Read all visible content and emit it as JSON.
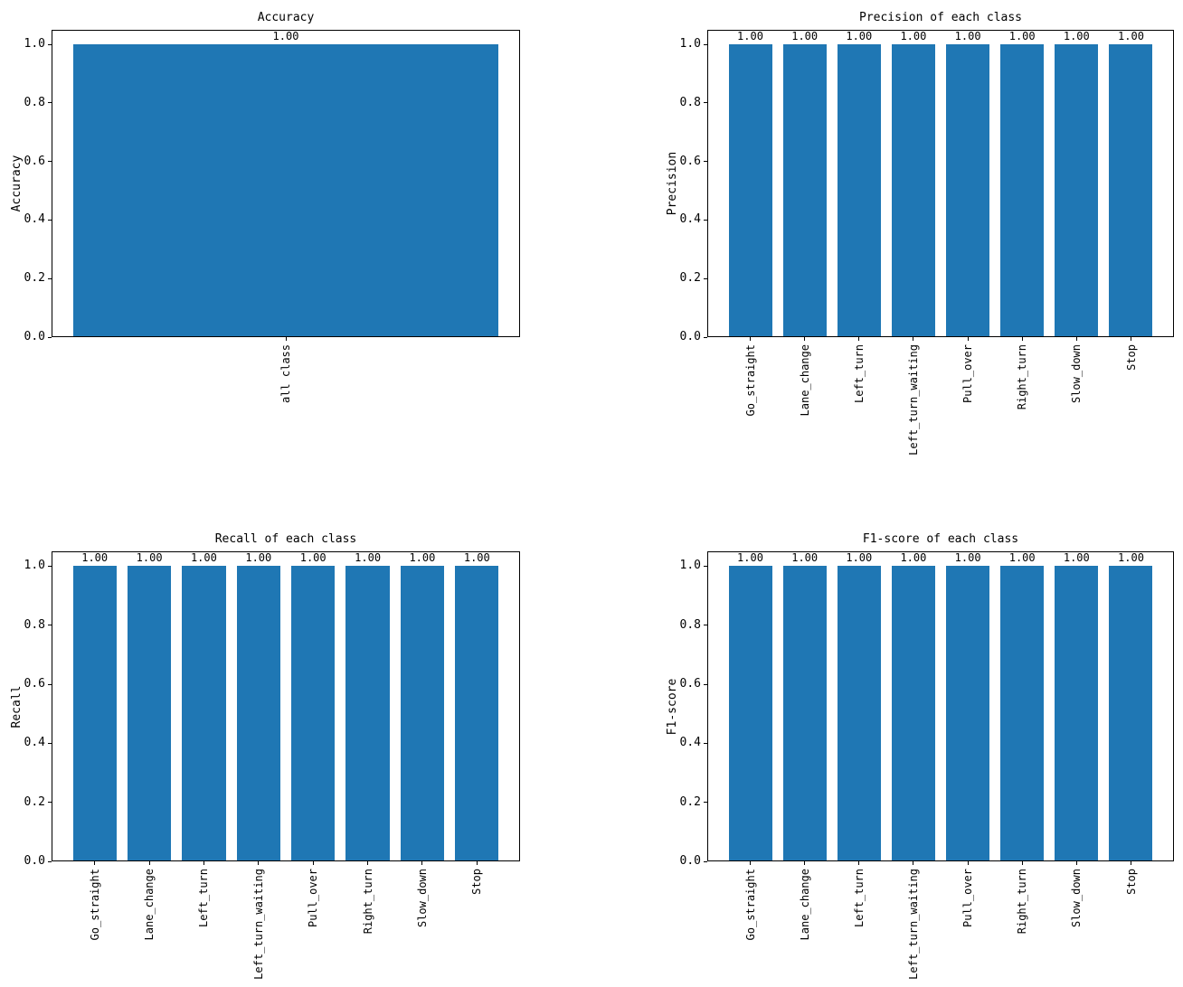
{
  "figure": {
    "background": "#ffffff",
    "bar_color": "#1f77b4",
    "axis_color": "#000000",
    "text_color": "#000000"
  },
  "chart_data": [
    {
      "type": "bar",
      "title": "Accuracy",
      "ylabel": "Accuracy",
      "xlabel": "",
      "categories": [
        "all class"
      ],
      "values": [
        1.0
      ],
      "bar_value_labels": [
        "1.00"
      ],
      "ylim": [
        0,
        1.05
      ],
      "ytick_values": [
        0.0,
        0.2,
        0.4,
        0.6,
        0.8,
        1.0
      ],
      "ytick_labels": [
        "0.0",
        "0.2",
        "0.4",
        "0.6",
        "0.8",
        "1.0"
      ],
      "grid": false,
      "legend": null
    },
    {
      "type": "bar",
      "title": "Precision of each class",
      "ylabel": "Precision",
      "xlabel": "",
      "categories": [
        "Go_straight",
        "Lane_change",
        "Left_turn",
        "Left_turn_waiting",
        "Pull_over",
        "Right_turn",
        "Slow_down",
        "Stop"
      ],
      "values": [
        1.0,
        1.0,
        1.0,
        1.0,
        1.0,
        1.0,
        1.0,
        1.0
      ],
      "bar_value_labels": [
        "1.00",
        "1.00",
        "1.00",
        "1.00",
        "1.00",
        "1.00",
        "1.00",
        "1.00"
      ],
      "ylim": [
        0,
        1.05
      ],
      "ytick_values": [
        0.0,
        0.2,
        0.4,
        0.6,
        0.8,
        1.0
      ],
      "ytick_labels": [
        "0.0",
        "0.2",
        "0.4",
        "0.6",
        "0.8",
        "1.0"
      ],
      "grid": false,
      "legend": null
    },
    {
      "type": "bar",
      "title": "Recall of each class",
      "ylabel": "Recall",
      "xlabel": "",
      "categories": [
        "Go_straight",
        "Lane_change",
        "Left_turn",
        "Left_turn_waiting",
        "Pull_over",
        "Right_turn",
        "Slow_down",
        "Stop"
      ],
      "values": [
        1.0,
        1.0,
        1.0,
        1.0,
        1.0,
        1.0,
        1.0,
        1.0
      ],
      "bar_value_labels": [
        "1.00",
        "1.00",
        "1.00",
        "1.00",
        "1.00",
        "1.00",
        "1.00",
        "1.00"
      ],
      "ylim": [
        0,
        1.05
      ],
      "ytick_values": [
        0.0,
        0.2,
        0.4,
        0.6,
        0.8,
        1.0
      ],
      "ytick_labels": [
        "0.0",
        "0.2",
        "0.4",
        "0.6",
        "0.8",
        "1.0"
      ],
      "grid": false,
      "legend": null
    },
    {
      "type": "bar",
      "title": "F1-score of each class",
      "ylabel": "F1-score",
      "xlabel": "",
      "categories": [
        "Go_straight",
        "Lane_change",
        "Left_turn",
        "Left_turn_waiting",
        "Pull_over",
        "Right_turn",
        "Slow_down",
        "Stop"
      ],
      "values": [
        1.0,
        1.0,
        1.0,
        1.0,
        1.0,
        1.0,
        1.0,
        1.0
      ],
      "bar_value_labels": [
        "1.00",
        "1.00",
        "1.00",
        "1.00",
        "1.00",
        "1.00",
        "1.00",
        "1.00"
      ],
      "ylim": [
        0,
        1.05
      ],
      "ytick_values": [
        0.0,
        0.2,
        0.4,
        0.6,
        0.8,
        1.0
      ],
      "ytick_labels": [
        "0.0",
        "0.2",
        "0.4",
        "0.6",
        "0.8",
        "1.0"
      ],
      "grid": false,
      "legend": null
    }
  ]
}
